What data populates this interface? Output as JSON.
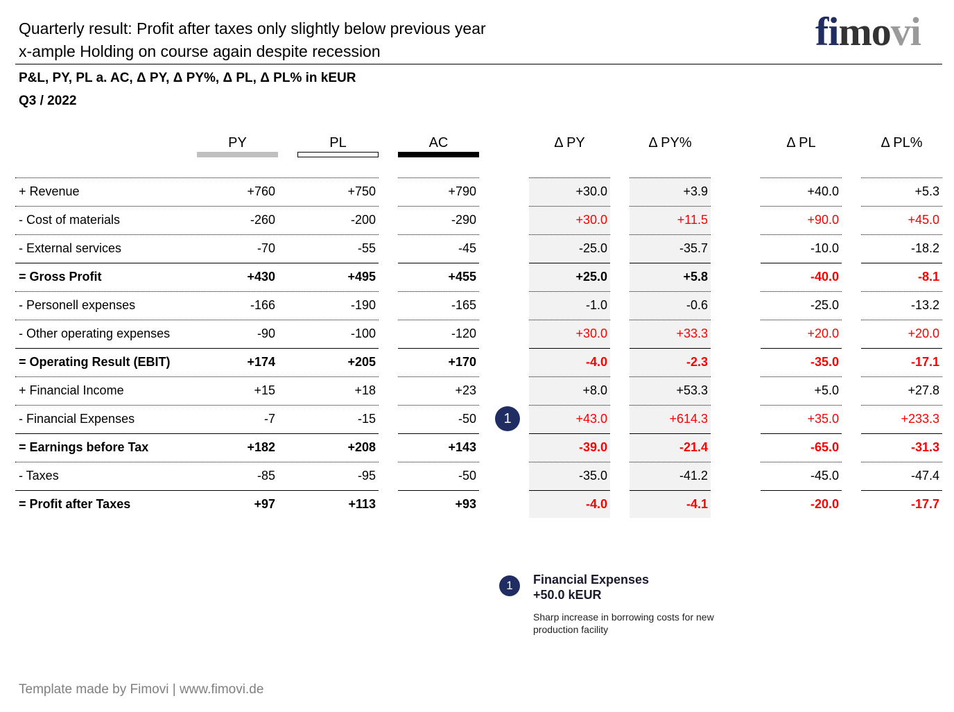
{
  "header": {
    "title_line1": "Quarterly result: Profit after taxes only slightly below previous year",
    "title_line2": "x-ample Holding on course again despite recession",
    "subtitle": "P&L, PY, PL a. AC, Δ PY, Δ PY%, Δ PL, Δ PL% in kEUR",
    "period": "Q3 / 2022"
  },
  "logo": {
    "part1": "fi",
    "part2": "mo",
    "part3": "vi"
  },
  "columns": {
    "py": "PY",
    "pl": "PL",
    "ac": "AC",
    "dpy": "Δ PY",
    "dpyp": "Δ PY%",
    "dpl": "Δ PL",
    "dplp": "Δ PL%"
  },
  "colors": {
    "brand": "#1f2d63",
    "negative": "#ff0000",
    "py_legend": "#c0c0c0",
    "ac_legend": "#000000",
    "shade": "#f2f2f2"
  },
  "rows": [
    {
      "label": "+ Revenue",
      "py": "+760",
      "pl": "+750",
      "ac": "+790",
      "dpy": "+30.0",
      "dpyp": "+3.9",
      "dpl": "+40.0",
      "dplp": "+5.3",
      "bold": false,
      "red_py": false,
      "red_pl": false
    },
    {
      "label": "- Cost of materials",
      "py": "-260",
      "pl": "-200",
      "ac": "-290",
      "dpy": "+30.0",
      "dpyp": "+11.5",
      "dpl": "+90.0",
      "dplp": "+45.0",
      "bold": false,
      "red_py": true,
      "red_pl": true
    },
    {
      "label": "- External services",
      "py": "-70",
      "pl": "-55",
      "ac": "-45",
      "dpy": "-25.0",
      "dpyp": "-35.7",
      "dpl": "-10.0",
      "dplp": "-18.2",
      "bold": false,
      "red_py": false,
      "red_pl": false
    },
    {
      "label": "= Gross Profit",
      "py": "+430",
      "pl": "+495",
      "ac": "+455",
      "dpy": "+25.0",
      "dpyp": "+5.8",
      "dpl": "-40.0",
      "dplp": "-8.1",
      "bold": true,
      "red_py": false,
      "red_pl": true
    },
    {
      "label": "- Personell expenses",
      "py": "-166",
      "pl": "-190",
      "ac": "-165",
      "dpy": "-1.0",
      "dpyp": "-0.6",
      "dpl": "-25.0",
      "dplp": "-13.2",
      "bold": false,
      "red_py": false,
      "red_pl": false
    },
    {
      "label": "- Other operating expenses",
      "py": "-90",
      "pl": "-100",
      "ac": "-120",
      "dpy": "+30.0",
      "dpyp": "+33.3",
      "dpl": "+20.0",
      "dplp": "+20.0",
      "bold": false,
      "red_py": true,
      "red_pl": true
    },
    {
      "label": "= Operating Result (EBIT)",
      "py": "+174",
      "pl": "+205",
      "ac": "+170",
      "dpy": "-4.0",
      "dpyp": "-2.3",
      "dpl": "-35.0",
      "dplp": "-17.1",
      "bold": true,
      "red_py": true,
      "red_pl": true
    },
    {
      "label": "+ Financial Income",
      "py": "+15",
      "pl": "+18",
      "ac": "+23",
      "dpy": "+8.0",
      "dpyp": "+53.3",
      "dpl": "+5.0",
      "dplp": "+27.8",
      "bold": false,
      "red_py": false,
      "red_pl": false
    },
    {
      "label": "- Financial Expenses",
      "py": "-7",
      "pl": "-15",
      "ac": "-50",
      "dpy": "+43.0",
      "dpyp": "+614.3",
      "dpl": "+35.0",
      "dplp": "+233.3",
      "bold": false,
      "red_py": true,
      "red_pl": true,
      "badge": "1"
    },
    {
      "label": "= Earnings before Tax",
      "py": "+182",
      "pl": "+208",
      "ac": "+143",
      "dpy": "-39.0",
      "dpyp": "-21.4",
      "dpl": "-65.0",
      "dplp": "-31.3",
      "bold": true,
      "red_py": true,
      "red_pl": true
    },
    {
      "label": "- Taxes",
      "py": "-85",
      "pl": "-95",
      "ac": "-50",
      "dpy": "-35.0",
      "dpyp": "-41.2",
      "dpl": "-45.0",
      "dplp": "-47.4",
      "bold": false,
      "red_py": false,
      "red_pl": false
    },
    {
      "label": "= Profit after Taxes",
      "py": "+97",
      "pl": "+113",
      "ac": "+93",
      "dpy": "-4.0",
      "dpyp": "-4.1",
      "dpl": "-20.0",
      "dplp": "-17.7",
      "bold": true,
      "red_py": true,
      "red_pl": true
    }
  ],
  "note": {
    "badge": "1",
    "title": "Financial Expenses",
    "value": "+50.0 kEUR",
    "text": "Sharp increase in borrowing costs for new production facility"
  },
  "footer": "Template made by Fimovi  |  www.fimovi.de"
}
